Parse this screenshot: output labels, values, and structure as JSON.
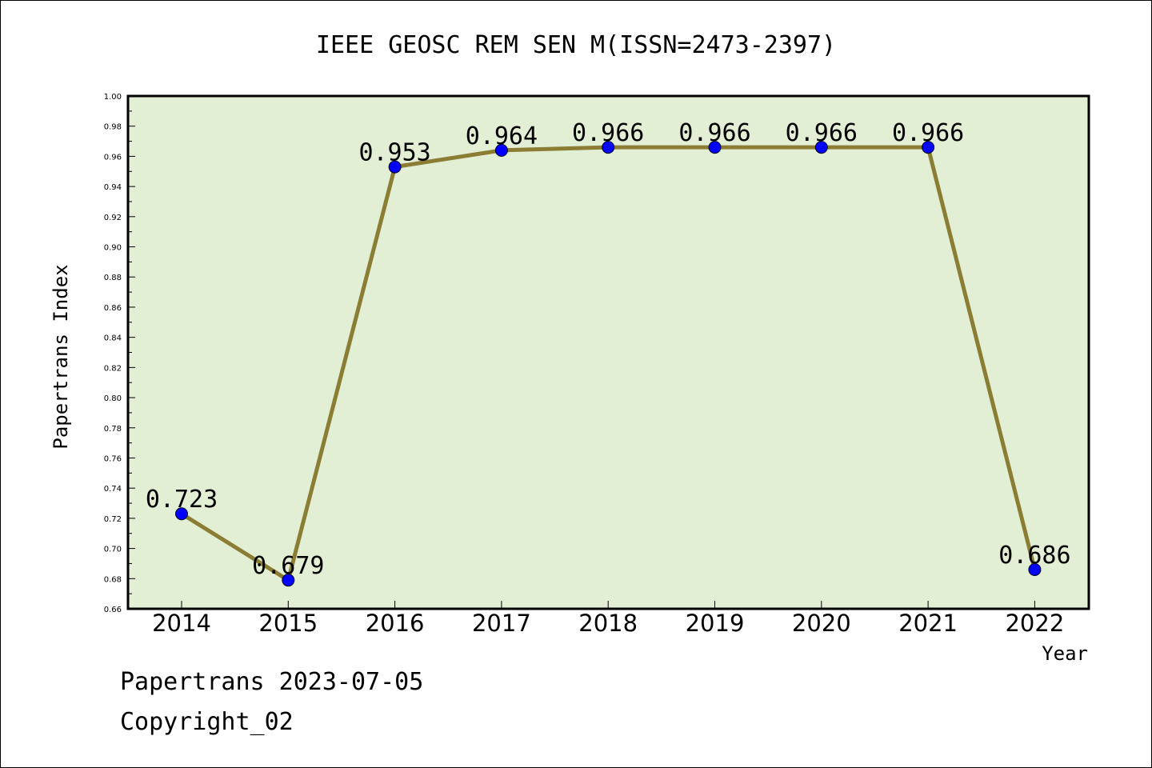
{
  "chart_data": {
    "type": "line",
    "title": "IEEE GEOSC REM SEN M(ISSN=2473-2397)",
    "xlabel": "Year",
    "ylabel": "Papertrans Index",
    "categories": [
      "2014",
      "2015",
      "2016",
      "2017",
      "2018",
      "2019",
      "2020",
      "2021",
      "2022"
    ],
    "series": [
      {
        "values": [
          0.723,
          0.679,
          0.953,
          0.964,
          0.966,
          0.966,
          0.966,
          0.966,
          0.686
        ],
        "labels": [
          "0.723",
          "0.679",
          "0.953",
          "0.964",
          "0.966",
          "0.966",
          "0.966",
          "0.966",
          "0.686"
        ]
      }
    ],
    "ylim": [
      0.66,
      1.0
    ],
    "yticks": [
      "0.66",
      "0.68",
      "0.70",
      "0.72",
      "0.74",
      "0.76",
      "0.78",
      "0.80",
      "0.82",
      "0.84",
      "0.86",
      "0.88",
      "0.90",
      "0.92",
      "0.94",
      "0.96",
      "0.98",
      "1.00"
    ],
    "grid": false,
    "colors": {
      "plot_background": "#e2efd4",
      "line": "#8b7d34",
      "marker": "#0000ff"
    }
  },
  "footer": {
    "line1": "Papertrans 2023-07-05",
    "line2": "Copyright_02"
  }
}
